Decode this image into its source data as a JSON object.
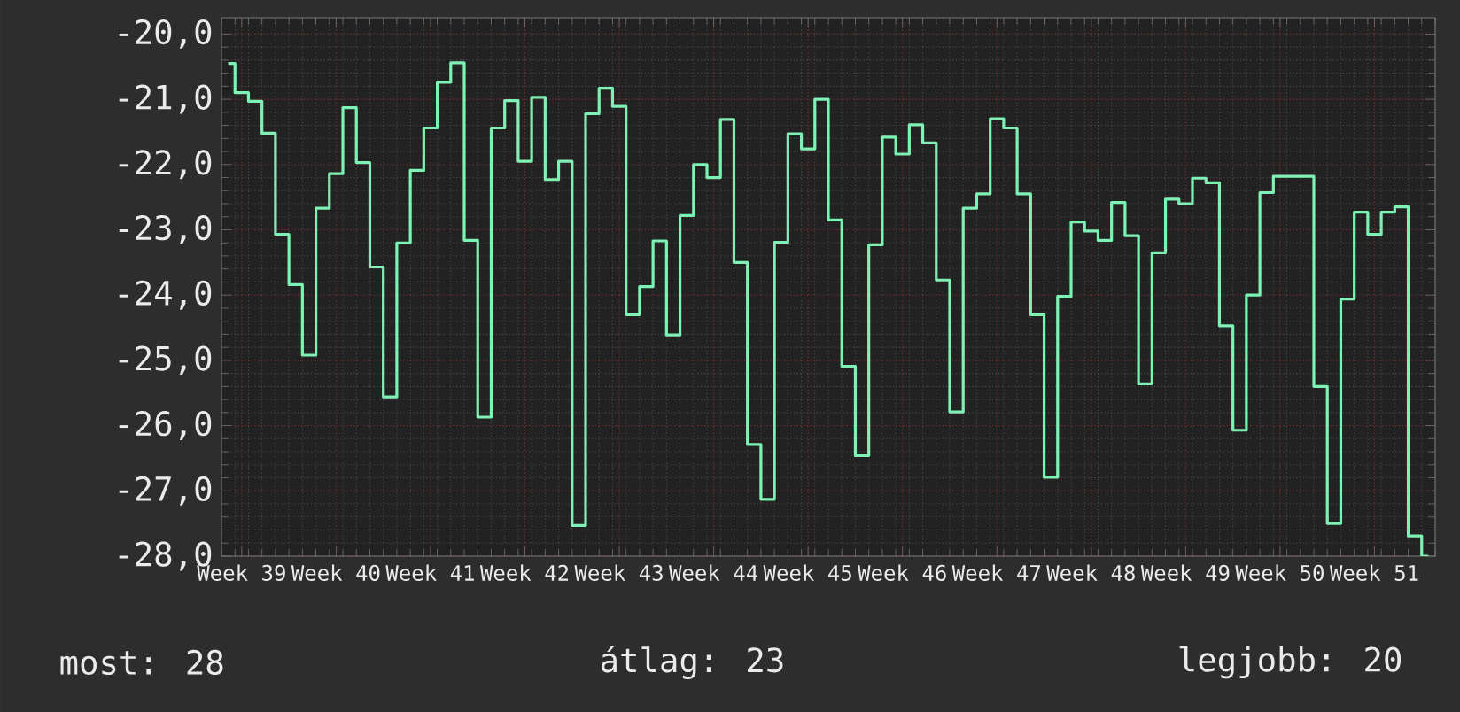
{
  "chart_data": {
    "type": "step",
    "categories": [
      null,
      "Week 39",
      null,
      null,
      null,
      null,
      null,
      null,
      "Week 40",
      null,
      null,
      null,
      null,
      null,
      null,
      "Week 41",
      null,
      null,
      null,
      null,
      null,
      null,
      "Week 42",
      null,
      null,
      null,
      null,
      null,
      null,
      "Week 43",
      null,
      null,
      null,
      null,
      null,
      null,
      "Week 44",
      null,
      null,
      null,
      null,
      null,
      null,
      "Week 45",
      null,
      null,
      null,
      null,
      null,
      null,
      "Week 46",
      null,
      null,
      null,
      null,
      null,
      null,
      "Week 47",
      null,
      null,
      null,
      null,
      null,
      null,
      "Week 48",
      null,
      null,
      null,
      null,
      null,
      null,
      "Week 49",
      null,
      null,
      null,
      null,
      null,
      null,
      "Week 50",
      null,
      null,
      null,
      null,
      null,
      null,
      "Week 51",
      null,
      null,
      null,
      null
    ],
    "series": [
      {
        "color": "#7ef2b4",
        "values": [
          -20.45,
          -20.9,
          -21.03,
          -21.52,
          -23.07,
          -23.84,
          -24.92,
          -22.67,
          -22.14,
          -21.13,
          -21.97,
          -23.57,
          -25.56,
          -23.2,
          -22.09,
          -21.44,
          -20.74,
          -20.44,
          -23.16,
          -25.87,
          -21.44,
          -21.02,
          -21.95,
          -20.97,
          -22.23,
          -21.95,
          -27.53,
          -21.22,
          -20.83,
          -21.11,
          -24.3,
          -23.87,
          -23.17,
          -24.61,
          -22.78,
          -22.0,
          -22.2,
          -21.31,
          -23.5,
          -26.29,
          -27.13,
          -23.19,
          -21.53,
          -21.76,
          -21.0,
          -22.85,
          -25.09,
          -26.46,
          -23.23,
          -21.58,
          -21.84,
          -21.39,
          -21.67,
          -23.77,
          -25.79,
          -22.67,
          -22.45,
          -21.3,
          -21.44,
          -22.45,
          -24.3,
          -26.79,
          -24.02,
          -22.88,
          -23.02,
          -23.16,
          -22.58,
          -23.09,
          -25.36,
          -23.35,
          -22.53,
          -22.6,
          -22.21,
          -22.28,
          -24.47,
          -26.07,
          -24.0,
          -22.43,
          -22.18,
          -22.18,
          -22.18,
          -25.4,
          -27.5,
          -24.06,
          -22.73,
          -23.07,
          -22.73,
          -22.65,
          -27.69,
          -28.0
        ]
      }
    ],
    "ylim": [
      -28,
      -19.75
    ],
    "yticks": [
      {
        "value": -20,
        "label": "-20,0"
      },
      {
        "value": -21,
        "label": "-21,0"
      },
      {
        "value": -22,
        "label": "-22,0"
      },
      {
        "value": -23,
        "label": "-23,0"
      },
      {
        "value": -24,
        "label": "-24,0"
      },
      {
        "value": -25,
        "label": "-25,0"
      },
      {
        "value": -26,
        "label": "-26,0"
      },
      {
        "value": -27,
        "label": "-27,0"
      },
      {
        "value": -28,
        "label": "-28,0"
      }
    ],
    "grid": true,
    "annotations": [
      "most: 28",
      "átlag: 23",
      "legjobb: 20"
    ]
  }
}
